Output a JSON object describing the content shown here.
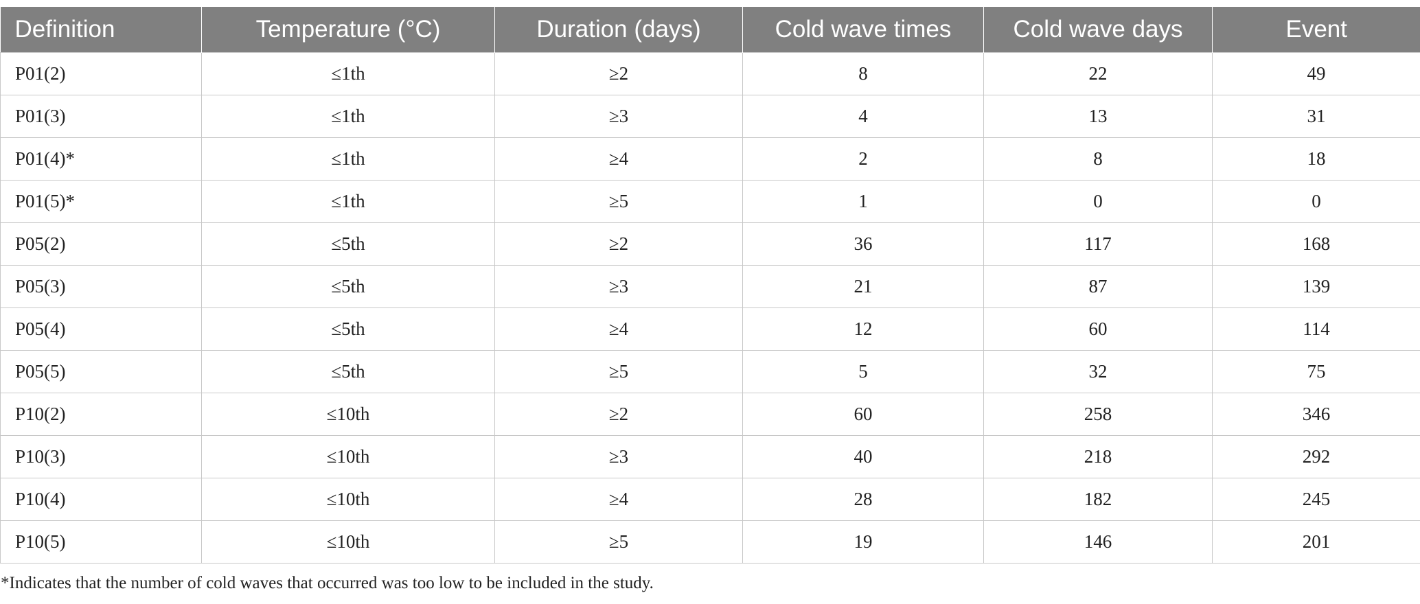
{
  "table": {
    "columns": [
      "Definition",
      "Temperature (°C)",
      "Duration (days)",
      "Cold wave times",
      "Cold wave days",
      "Event"
    ],
    "rows": [
      [
        "P01(2)",
        "≤1th",
        "≥2",
        "8",
        "22",
        "49"
      ],
      [
        "P01(3)",
        "≤1th",
        "≥3",
        "4",
        "13",
        "31"
      ],
      [
        "P01(4)*",
        "≤1th",
        "≥4",
        "2",
        "8",
        "18"
      ],
      [
        "P01(5)*",
        "≤1th",
        "≥5",
        "1",
        "0",
        "0"
      ],
      [
        "P05(2)",
        "≤5th",
        "≥2",
        "36",
        "117",
        "168"
      ],
      [
        "P05(3)",
        "≤5th",
        "≥3",
        "21",
        "87",
        "139"
      ],
      [
        "P05(4)",
        "≤5th",
        "≥4",
        "12",
        "60",
        "114"
      ],
      [
        "P05(5)",
        "≤5th",
        "≥5",
        "5",
        "32",
        "75"
      ],
      [
        "P10(2)",
        "≤10th",
        "≥2",
        "60",
        "258",
        "346"
      ],
      [
        "P10(3)",
        "≤10th",
        "≥3",
        "40",
        "218",
        "292"
      ],
      [
        "P10(4)",
        "≤10th",
        "≥4",
        "28",
        "182",
        "245"
      ],
      [
        "P10(5)",
        "≤10th",
        "≥5",
        "19",
        "146",
        "201"
      ]
    ],
    "footnote": "*Indicates that the number of cold waves that occurred was too low to be included in the study."
  },
  "colors": {
    "header_background": "#808080",
    "header_text": "#ffffff",
    "grid_line": "#c8c8c8"
  }
}
